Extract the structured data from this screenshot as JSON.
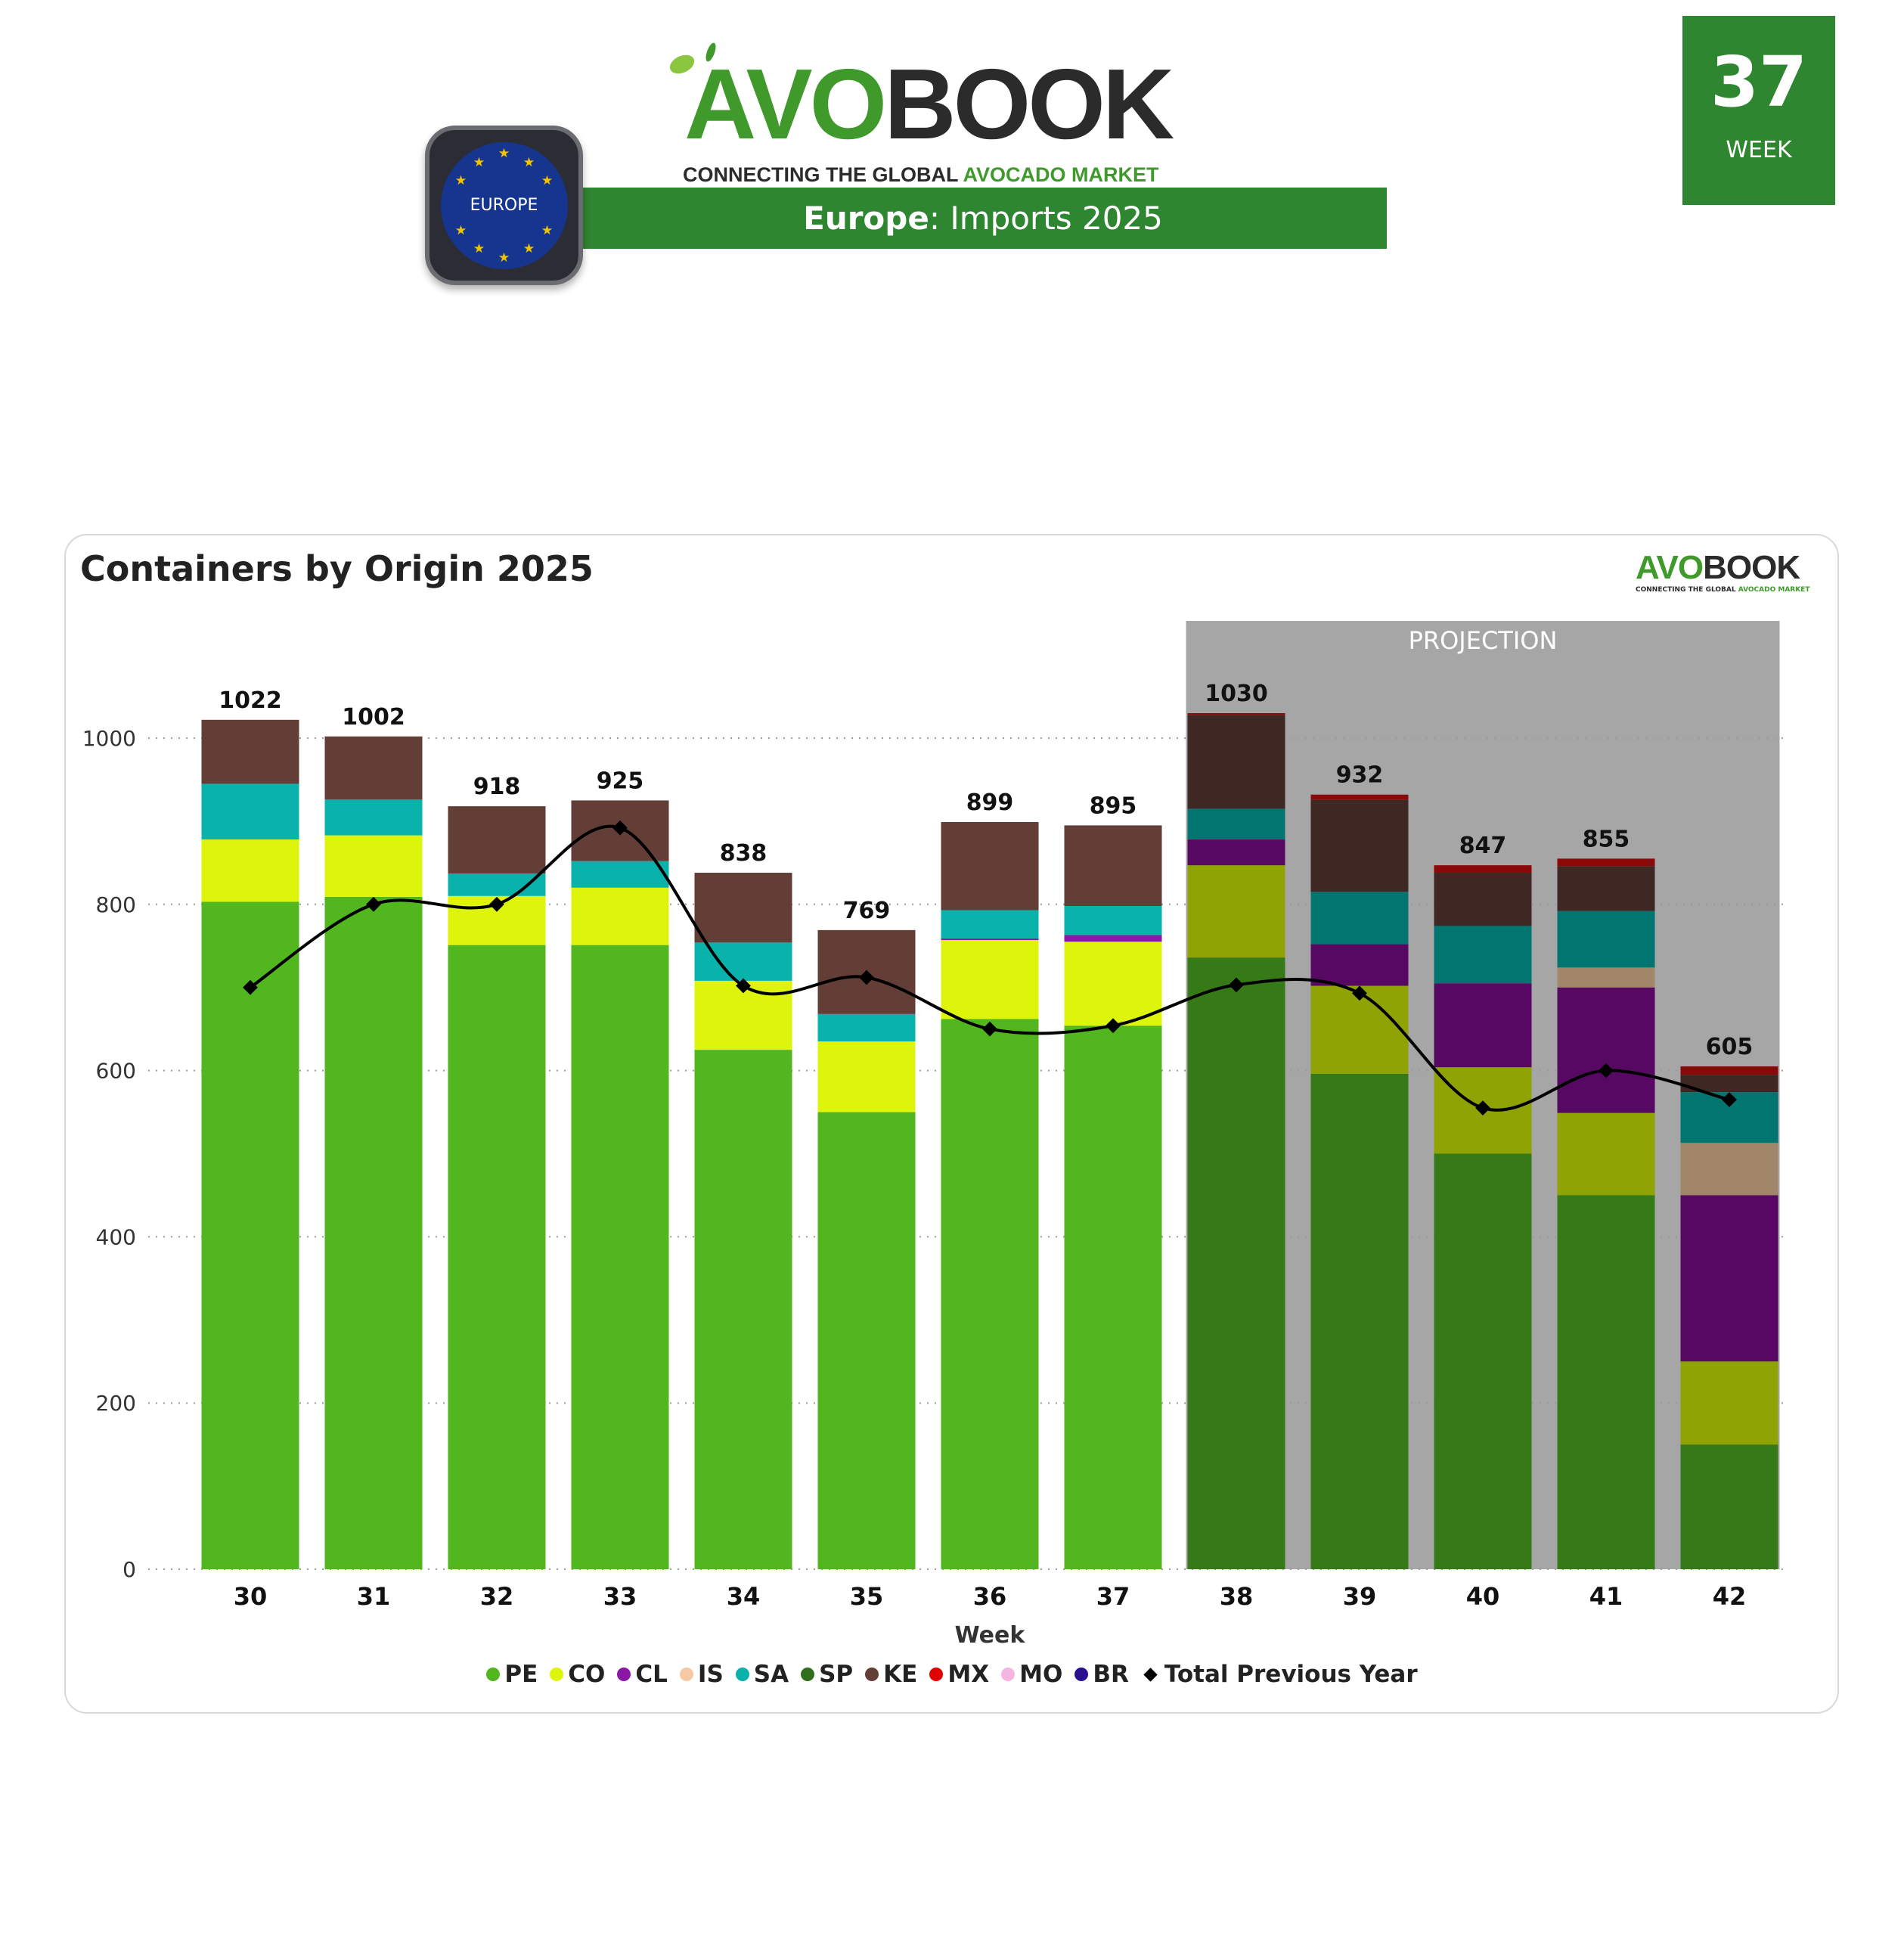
{
  "header": {
    "logo_text_avo": "AVO",
    "logo_text_book": "BOOK",
    "logo_tagline_dark": "CONNECTING THE GLOBAL ",
    "logo_tagline_green": "AVOCADO MARKET",
    "banner_region": "Europe",
    "banner_rest": ": Imports 2025",
    "badge_label": "EUROPE",
    "week_number": "37",
    "week_label": "WEEK"
  },
  "colors": {
    "brand_green": "#2e8630",
    "projection_bg": "#a6a6a6"
  },
  "chart_data": {
    "type": "bar",
    "stacked": true,
    "title": "Containers by Origin 2025",
    "xlabel": "Week",
    "ylabel": "",
    "ylim": [
      0,
      1140
    ],
    "yticks": [
      0,
      200,
      400,
      600,
      800,
      1000
    ],
    "grid": true,
    "legend_position": "bottom-center",
    "projection_label": "PROJECTION",
    "projection_from_week": "38",
    "categories": [
      "30",
      "31",
      "32",
      "33",
      "34",
      "35",
      "36",
      "37",
      "38",
      "39",
      "40",
      "41",
      "42"
    ],
    "totals": [
      1022,
      1002,
      918,
      925,
      838,
      769,
      899,
      895,
      1030,
      932,
      847,
      855,
      605
    ],
    "series": [
      {
        "name": "PE",
        "color": "#52b71e",
        "projection_color": "#52b71e",
        "values": [
          803,
          809,
          751,
          751,
          625,
          550,
          662,
          654,
          0,
          0,
          0,
          0,
          0
        ]
      },
      {
        "name": "SP",
        "color": "#2f6e1a",
        "projection_color": "#357a16",
        "values": [
          0,
          0,
          0,
          0,
          0,
          0,
          0,
          0,
          736,
          596,
          500,
          450,
          150
        ]
      },
      {
        "name": "CO",
        "color": "#dcf50a",
        "projection_color": "#90a305",
        "values": [
          75,
          74,
          59,
          69,
          83,
          85,
          95,
          101,
          111,
          106,
          104,
          99,
          100
        ]
      },
      {
        "name": "CL",
        "color": "#8c16a6",
        "projection_color": "#560862",
        "values": [
          0,
          0,
          0,
          0,
          0,
          0,
          2,
          8,
          31,
          50,
          101,
          151,
          200
        ]
      },
      {
        "name": "IS",
        "color": "#f5c9a3",
        "projection_color": "#a2866a",
        "values": [
          0,
          0,
          0,
          0,
          0,
          0,
          0,
          0,
          0,
          0,
          0,
          24,
          63
        ]
      },
      {
        "name": "SA",
        "color": "#0ab2ac",
        "projection_color": "#037570",
        "values": [
          67,
          43,
          27,
          32,
          46,
          33,
          34,
          35,
          37,
          63,
          69,
          68,
          61
        ]
      },
      {
        "name": "KE",
        "color": "#633e37",
        "projection_color": "#3f2724",
        "values": [
          77,
          76,
          81,
          73,
          84,
          101,
          106,
          97,
          113,
          111,
          64,
          54,
          21
        ]
      },
      {
        "name": "MX",
        "color": "#e00000",
        "projection_color": "#8a0a0a",
        "values": [
          0,
          0,
          0,
          0,
          0,
          0,
          0,
          0,
          2,
          6,
          9,
          9,
          10
        ]
      },
      {
        "name": "MO",
        "color": "#f5b5e0",
        "projection_color": "#f5b5e0",
        "values": [
          0,
          0,
          0,
          0,
          0,
          0,
          0,
          0,
          0,
          0,
          0,
          0,
          0
        ]
      },
      {
        "name": "BR",
        "color": "#2a0f8f",
        "projection_color": "#2a0f8f",
        "values": [
          0,
          0,
          0,
          0,
          0,
          0,
          0,
          0,
          0,
          0,
          0,
          0,
          0
        ]
      }
    ],
    "line": {
      "name": "Total Previous Year",
      "color": "#000000",
      "values": [
        700,
        800,
        800,
        892,
        702,
        712,
        650,
        654,
        703,
        693,
        555,
        600,
        565
      ]
    },
    "legend": [
      "PE",
      "CO",
      "CL",
      "IS",
      "SA",
      "SP",
      "KE",
      "MX",
      "MO",
      "BR",
      "Total Previous Year"
    ]
  }
}
